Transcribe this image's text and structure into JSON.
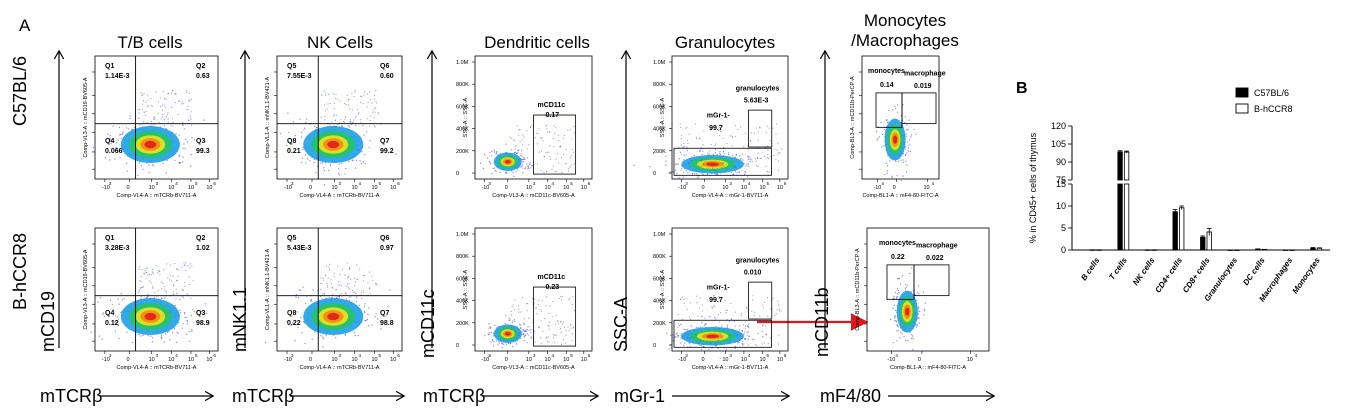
{
  "panel_a_label": "A",
  "panel_b_label": "B",
  "row_labels": [
    "C57BL/6",
    "B-hCCR8"
  ],
  "columns": [
    {
      "title": "T/B cells",
      "y_marker": "mCD19",
      "x_marker": "mTCRβ"
    },
    {
      "title": "NK Cells",
      "y_marker": "mNK1.1",
      "x_marker": "mTCRβ"
    },
    {
      "title": "Dendritic cells",
      "y_marker": "mCD11c",
      "x_marker": "mTCRβ"
    },
    {
      "title": "Granulocytes",
      "y_marker": "SSC-A",
      "x_marker": "mGr-1"
    },
    {
      "title": "Monocytes\n/Macrophages",
      "y_marker": "mCD11b",
      "x_marker": "mF4/80"
    }
  ],
  "plots": [
    {
      "kind": "quad",
      "xlabel": "Comp-VL4-A :: mTCRb-BV711-A",
      "ylabel": "Comp-VL3-A :: mCD19-BV605-A",
      "gates": [
        {
          "name": "Q1",
          "value": "1.14E-3"
        },
        {
          "name": "Q2",
          "value": "0.63"
        },
        {
          "name": "Q3",
          "value": "99.3"
        },
        {
          "name": "Q4",
          "value": "0.066"
        }
      ]
    },
    {
      "kind": "quad",
      "xlabel": "Comp-VL4-A :: mTCRb-BV711-A",
      "ylabel": "Comp-VL1-A :: mNK1.1-BV421-A",
      "gates": [
        {
          "name": "Q5",
          "value": "7.55E-3"
        },
        {
          "name": "Q6",
          "value": "0.60"
        },
        {
          "name": "Q7",
          "value": "99.2"
        },
        {
          "name": "Q8",
          "value": "0.21"
        }
      ]
    },
    {
      "kind": "gate",
      "xlabel": "Comp-VL3-A :: mCD11c-BV605-A",
      "ylabel": "SSC-A :: SSC-A",
      "gates": [
        {
          "name": "mCD11c",
          "value": "0.17"
        }
      ]
    },
    {
      "kind": "gran",
      "xlabel": "Comp-VL4-A :: mGr-1-BV711-A",
      "ylabel": "SSC-A :: SSC-A",
      "gates": [
        {
          "name": "granulocytes",
          "value": "5.63E-3"
        },
        {
          "name": "mGr-1-",
          "value": "99.7"
        }
      ]
    },
    {
      "kind": "mono",
      "xlabel": "Comp-BL1-A :: mF4-80-FITC-A",
      "ylabel": "Comp-BL3-A :: mCD11b-PerCP-A",
      "gates": [
        {
          "name": "monocytes",
          "value": "0.14"
        },
        {
          "name": "macrophage",
          "value": "0.019"
        }
      ]
    },
    {
      "kind": "quad",
      "xlabel": "Comp-VL4-A :: mTCRb-BV711-A",
      "ylabel": "Comp-VL3-A :: mCD19-BV605-A",
      "gates": [
        {
          "name": "Q1",
          "value": "3.28E-3"
        },
        {
          "name": "Q2",
          "value": "1.02"
        },
        {
          "name": "Q3",
          "value": "98.9"
        },
        {
          "name": "Q4",
          "value": "0.12"
        }
      ]
    },
    {
      "kind": "quad",
      "xlabel": "Comp-VL4-A :: mTCRb-BV711-A",
      "ylabel": "Comp-VL1-A :: mNK1.1-BV421-A",
      "gates": [
        {
          "name": "Q5",
          "value": "5.43E-3"
        },
        {
          "name": "Q6",
          "value": "0.97"
        },
        {
          "name": "Q7",
          "value": "98.8"
        },
        {
          "name": "Q8",
          "value": "0.22"
        }
      ]
    },
    {
      "kind": "gate",
      "xlabel": "Comp-VL3-A :: mCD11c-BV605-A",
      "ylabel": "SSC-A :: SSC-A",
      "gates": [
        {
          "name": "mCD11c",
          "value": "0.23"
        }
      ]
    },
    {
      "kind": "gran",
      "xlabel": "Comp-VL4-A :: mGr-1-BV711-A",
      "ylabel": "SSC-A :: SSC-A",
      "gates": [
        {
          "name": "granulocytes",
          "value": "0.010"
        },
        {
          "name": "mGr-1-",
          "value": "99.7"
        }
      ]
    },
    {
      "kind": "mono",
      "xlabel": "Comp-BL1-A :: mF4-80-FITC-A",
      "ylabel": "Comp-BL3-A :: mCD11b-PerCP-A",
      "gates": [
        {
          "name": "monocytes",
          "value": "0.22"
        },
        {
          "name": "macrophage",
          "value": "0.022"
        }
      ]
    }
  ],
  "flow_axis_ticks": {
    "log_x": [
      "-10",
      "0",
      "10",
      "10",
      "10",
      "10"
    ],
    "log_x_exp": [
      "3",
      "",
      "3",
      "4",
      "5",
      "6"
    ],
    "scatter_y": [
      "1.0M",
      "800K",
      "600K",
      "400K",
      "200K",
      "0"
    ],
    "mono_x": [
      "-10",
      "0",
      "10"
    ],
    "mono_x_exp": [
      "4",
      "",
      "4"
    ]
  },
  "colors": {
    "series1": "#000000",
    "series2": "#ffffff",
    "arrow": "#e0161c",
    "dot": "#3a3ad8"
  },
  "chart_data": {
    "type": "bar",
    "ylabel": "% in CD45+ cells of thymus",
    "categories": [
      "B cells",
      "T cells",
      "NK cells",
      "CD4+ cells",
      "CD8+ cells",
      "Granulocytes",
      "DC cells",
      "Macrophages",
      "Monocytes"
    ],
    "series": [
      {
        "name": "C57BL/6",
        "values": [
          0.05,
          98.5,
          0.05,
          8.7,
          2.9,
          0.02,
          0.25,
          0.03,
          0.45
        ],
        "errors": [
          0,
          0.9,
          0,
          0.5,
          0.3,
          0,
          0,
          0,
          0.1
        ]
      },
      {
        "name": "B-hCCR8",
        "values": [
          0.05,
          98.3,
          0.05,
          9.6,
          4.1,
          0.02,
          0.15,
          0.03,
          0.4
        ],
        "errors": [
          0,
          0.8,
          0,
          0.4,
          0.8,
          0,
          0,
          0,
          0.1
        ]
      }
    ],
    "yaxis_broken": true,
    "lower_ticks": [
      0,
      5,
      10,
      15
    ],
    "upper_ticks": [
      75,
      90,
      105,
      120
    ],
    "legend_position": "top-right"
  }
}
